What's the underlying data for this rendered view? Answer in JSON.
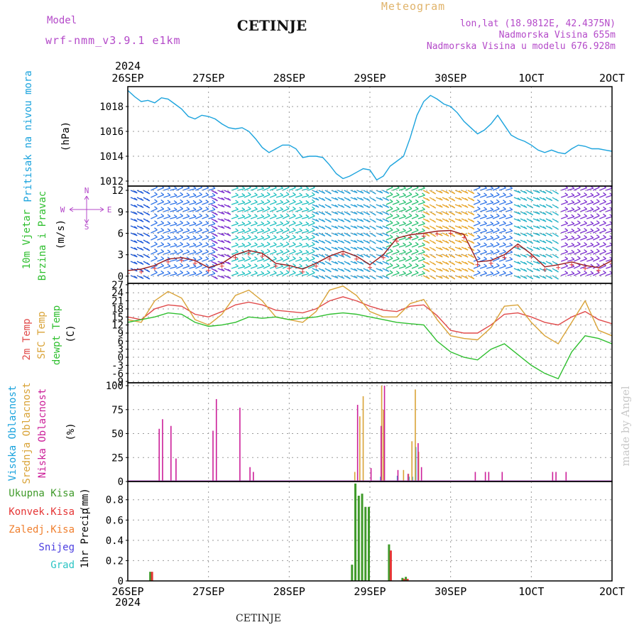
{
  "header": {
    "model_label": "Model",
    "model_name": "wrf-nmm_v3.9.1 e1km",
    "station": "CETINJE",
    "product": "Meteogram",
    "coords": "lon,lat (18.9812E, 42.4375N)",
    "elevation": "Nadmorska Visina 655m",
    "model_elevation": "Nadmorska Visina u modelu 676.928m",
    "footer_station": "CETINJE",
    "credit": "made by Angel"
  },
  "colors": {
    "pressure": "#1ba3dd",
    "speed": "#9b1c1c",
    "gust_marker": "#e23b3b",
    "t2m": "#e04a4a",
    "tsfc": "#d9a337",
    "dewpt": "#2fbf2f",
    "cloud_high": "#1ba3dd",
    "cloud_mid": "#d9a337",
    "cloud_low": "#cc1f99",
    "precip_total": "#3f9a2a",
    "precip_conv": "#e53535",
    "precip_frozen": "#f07f2e",
    "precip_snow": "#4b3ee0",
    "precip_grad": "#2bc4c4",
    "label_purple": "#b44ac9",
    "label_gold": "#e0b36a"
  },
  "time_axis": {
    "year": "2024",
    "ticks": [
      "26SEP",
      "27SEP",
      "28SEP",
      "29SEP",
      "30SEP",
      "1OCT",
      "2OCT"
    ],
    "ticks_display": [
      "26SEP",
      "27SEP",
      "28SEP",
      "29SEP",
      "30SEP",
      "1OCT",
      "2OCT"
    ],
    "range_hours": [
      0,
      144
    ]
  },
  "chart_data": [
    {
      "id": "pressure",
      "type": "line",
      "ylabel_lines": [
        "Pritisak na nivou mora"
      ],
      "unit": "(hPa)",
      "yticks": [
        "1012",
        "1014",
        "1016",
        "1018"
      ],
      "ylim": [
        1011.6,
        1019.6
      ],
      "series": [
        {
          "name": "",
          "x": [
            0,
            2,
            4,
            6,
            8,
            10,
            12,
            14,
            16,
            18,
            20,
            22,
            24,
            26,
            28,
            30,
            32,
            34,
            36,
            38,
            40,
            42,
            44,
            46,
            48,
            50,
            52,
            54,
            56,
            58,
            60,
            62,
            64,
            66,
            68,
            70,
            72,
            74,
            76,
            78,
            80,
            82,
            84,
            86,
            88,
            90,
            92,
            94,
            96,
            98,
            100,
            102,
            104,
            106,
            108,
            110,
            112,
            114,
            116,
            118,
            120,
            122,
            124,
            126,
            128,
            130,
            132,
            134,
            136,
            138,
            140,
            142,
            144
          ],
          "y": [
            1019.3,
            1018.8,
            1018.4,
            1018.5,
            1018.3,
            1018.7,
            1018.6,
            1018.2,
            1017.8,
            1017.2,
            1017.0,
            1017.3,
            1017.2,
            1017.0,
            1016.6,
            1016.3,
            1016.2,
            1016.3,
            1016.0,
            1015.4,
            1014.7,
            1014.3,
            1014.6,
            1014.9,
            1014.9,
            1014.6,
            1013.9,
            1014.0,
            1014.0,
            1013.9,
            1013.3,
            1012.6,
            1012.2,
            1012.4,
            1012.7,
            1013.0,
            1012.9,
            1012.1,
            1012.4,
            1013.2,
            1013.6,
            1014.0,
            1015.5,
            1017.3,
            1018.4,
            1018.9,
            1018.6,
            1018.2,
            1018.0,
            1017.5,
            1016.8,
            1016.3,
            1015.8,
            1016.1,
            1016.6,
            1017.3,
            1016.5,
            1015.7,
            1015.4,
            1015.2,
            1014.9,
            1014.5,
            1014.3,
            1014.5,
            1014.3,
            1014.2,
            1014.6,
            1014.9,
            1014.8,
            1014.6,
            1014.6,
            1014.5,
            1014.4
          ]
        }
      ]
    },
    {
      "id": "wind",
      "type": "line",
      "ylabel_lines": [
        "10m Vjetar",
        "Brzina i Pravac"
      ],
      "unit": "(m/s)",
      "compass": [
        "N",
        "W",
        "E",
        "S"
      ],
      "yticks": [
        "0",
        "3",
        "6",
        "9",
        "12"
      ],
      "ylim": [
        -1,
        12.6
      ],
      "series": [
        {
          "name": "",
          "x": [
            0,
            4,
            8,
            12,
            16,
            20,
            24,
            28,
            32,
            36,
            40,
            44,
            48,
            52,
            56,
            60,
            64,
            68,
            72,
            76,
            80,
            84,
            88,
            92,
            96,
            100,
            104,
            108,
            112,
            116,
            120,
            124,
            128,
            132,
            136,
            140,
            144
          ],
          "y": [
            0.8,
            1.0,
            1.5,
            2.4,
            2.6,
            2.2,
            1.2,
            1.8,
            3.0,
            3.6,
            3.2,
            1.8,
            1.5,
            1.0,
            1.8,
            2.8,
            3.5,
            2.8,
            1.6,
            3.0,
            5.3,
            5.8,
            6.0,
            6.3,
            6.4,
            5.8,
            2.0,
            2.2,
            3.0,
            4.5,
            3.1,
            1.3,
            1.6,
            2.0,
            1.5,
            1.2,
            2.2
          ]
        }
      ],
      "direction_bands": [
        {
          "from": 0,
          "to": 6,
          "color": "#1a56d8"
        },
        {
          "from": 6,
          "to": 24,
          "color": "#2f74e8"
        },
        {
          "from": 24,
          "to": 30,
          "color": "#7c2fd0"
        },
        {
          "from": 30,
          "to": 54,
          "color": "#1fc0c0"
        },
        {
          "from": 54,
          "to": 76,
          "color": "#2aa0d8"
        },
        {
          "from": 76,
          "to": 87,
          "color": "#25c070"
        },
        {
          "from": 87,
          "to": 102,
          "color": "#e8a62a"
        },
        {
          "from": 102,
          "to": 114,
          "color": "#2f74e8"
        },
        {
          "from": 114,
          "to": 128,
          "color": "#27b3c8"
        },
        {
          "from": 128,
          "to": 144,
          "color": "#7c2fd0"
        }
      ]
    },
    {
      "id": "temperature",
      "type": "line",
      "ylabel_lines": [
        "2m Temp",
        "SFC Temp",
        "dewpt Temp"
      ],
      "unit": "(C)",
      "yticks": [
        "-9",
        "-6",
        "-3",
        "0",
        "3",
        "6",
        "9",
        "12",
        "15",
        "18",
        "21",
        "24",
        "27"
      ],
      "ylim": [
        -9.5,
        27.5
      ],
      "series": [
        {
          "name": "2m Temp",
          "x": [
            0,
            4,
            8,
            12,
            16,
            20,
            24,
            28,
            32,
            36,
            40,
            44,
            48,
            52,
            56,
            60,
            64,
            68,
            72,
            76,
            80,
            84,
            88,
            92,
            96,
            100,
            104,
            108,
            112,
            116,
            120,
            124,
            128,
            132,
            136,
            140,
            144
          ],
          "y": [
            15,
            14,
            18,
            19.5,
            19,
            16,
            15,
            17,
            19.5,
            20.5,
            19.5,
            17.5,
            17,
            16.5,
            18,
            21,
            22.5,
            21,
            19,
            17.5,
            17,
            19,
            19.5,
            15.5,
            10,
            9,
            9,
            12,
            16,
            16.5,
            15,
            13,
            12,
            15,
            17,
            14,
            12.5
          ]
        },
        {
          "name": "SFC Temp",
          "x": [
            0,
            4,
            8,
            12,
            16,
            20,
            24,
            28,
            32,
            36,
            40,
            44,
            48,
            52,
            56,
            60,
            64,
            68,
            72,
            76,
            80,
            84,
            88,
            92,
            96,
            100,
            104,
            108,
            112,
            116,
            120,
            124,
            128,
            132,
            136,
            140,
            144
          ],
          "y": [
            14,
            13,
            21,
            24.5,
            22,
            14,
            12,
            16,
            23,
            25,
            21,
            15,
            14,
            13,
            17,
            25,
            26.5,
            23,
            17,
            15,
            15,
            20,
            21.5,
            14,
            8,
            7,
            6.5,
            11,
            19,
            19.5,
            13,
            8,
            5,
            13,
            21,
            10,
            8
          ]
        },
        {
          "name": "dewpt Temp",
          "x": [
            0,
            4,
            8,
            12,
            16,
            20,
            24,
            28,
            32,
            36,
            40,
            44,
            48,
            52,
            56,
            60,
            64,
            68,
            72,
            76,
            80,
            84,
            88,
            92,
            96,
            100,
            104,
            108,
            112,
            116,
            120,
            124,
            128,
            132,
            136,
            140,
            144
          ],
          "y": [
            13,
            14,
            15,
            16.5,
            16,
            13,
            11.5,
            12,
            13,
            15,
            14.5,
            15,
            14,
            14.5,
            15,
            16,
            16.5,
            16,
            15,
            14,
            13,
            12.5,
            12,
            6,
            2,
            0,
            -1,
            3,
            5,
            1,
            -3,
            -6,
            -8,
            2,
            8,
            7,
            5
          ]
        }
      ]
    },
    {
      "id": "clouds",
      "type": "bar",
      "ylabel_lines": [
        "Visoka Oblacnost",
        "Srednja Oblacnost",
        "Niska Oblacnost"
      ],
      "unit": "(%)",
      "yticks": [
        "0",
        "25",
        "50",
        "75",
        "100"
      ],
      "ylim": [
        0,
        103
      ],
      "series": [
        {
          "name": "Visoka Oblacnost",
          "bars": [
            [
              75.5,
              5
            ],
            [
              80.5,
              6
            ],
            [
              84,
              5
            ],
            [
              85,
              5
            ],
            [
              86,
              36
            ]
          ]
        },
        {
          "name": "Srednja Oblacnost",
          "bars": [
            [
              67.5,
              10
            ],
            [
              69,
              68
            ],
            [
              70,
              89
            ],
            [
              75.5,
              100
            ],
            [
              76,
              75
            ],
            [
              82,
              12
            ],
            [
              83.5,
              8
            ],
            [
              84.5,
              42
            ],
            [
              85.5,
              96
            ],
            [
              86.5,
              31
            ]
          ]
        },
        {
          "name": "Niska Oblacnost",
          "bars": [
            [
              9,
              55
            ],
            [
              10,
              65
            ],
            [
              12.5,
              58
            ],
            [
              14,
              24
            ],
            [
              25,
              53
            ],
            [
              26,
              86
            ],
            [
              33,
              77
            ],
            [
              36,
              15
            ],
            [
              37,
              10
            ],
            [
              68,
              80
            ],
            [
              72,
              14
            ],
            [
              75,
              58
            ],
            [
              76,
              100
            ],
            [
              80,
              12
            ],
            [
              83,
              8
            ],
            [
              86,
              40
            ],
            [
              87,
              15
            ],
            [
              103,
              10
            ],
            [
              106,
              10
            ],
            [
              107,
              10
            ],
            [
              111,
              10
            ],
            [
              126,
              10
            ],
            [
              127,
              10
            ],
            [
              130,
              10
            ]
          ]
        }
      ]
    },
    {
      "id": "precip",
      "type": "bar",
      "ylabel_lines": [
        "1hr Precip"
      ],
      "unit": "(mm)",
      "legend": [
        "Ukupna Kisa",
        "Konvek.Kisa",
        "Zaledj.Kisa",
        "Snijeg",
        "Grad"
      ],
      "yticks": [
        "0",
        "0.2",
        "0.4",
        "0.6",
        "0.8"
      ],
      "ylim": [
        0,
        0.98
      ],
      "series": [
        {
          "name": "Ukupna Kisa",
          "bars": [
            [
              7,
              0.09
            ],
            [
              67,
              0.16
            ],
            [
              68,
              0.96
            ],
            [
              69,
              0.84
            ],
            [
              70,
              0.86
            ],
            [
              71,
              0.73
            ],
            [
              72,
              0.73
            ],
            [
              78,
              0.36
            ],
            [
              82,
              0.03
            ],
            [
              83,
              0.04
            ]
          ]
        },
        {
          "name": "Konvek.Kisa",
          "bars": [
            [
              7,
              0.09
            ],
            [
              78,
              0.3
            ],
            [
              82,
              0.02
            ],
            [
              83,
              0.02
            ]
          ]
        }
      ]
    }
  ]
}
